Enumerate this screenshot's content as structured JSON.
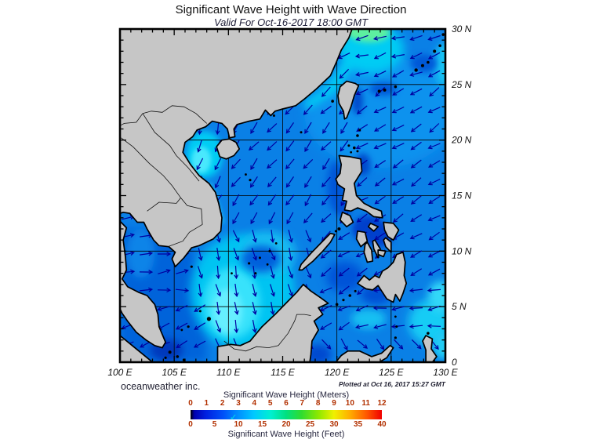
{
  "header": {
    "title": "Significant Wave Height with Wave Direction",
    "subtitle": "Valid For Oct-16-2017 18:00 GMT"
  },
  "footer": {
    "credit": "oceanweather inc.",
    "plotted_at": "Plotted at Oct 16, 2017 15:27 GMT"
  },
  "map": {
    "lon_min": 100,
    "lon_max": 130,
    "lat_min": 0,
    "lat_max": 30,
    "grid_step": 5,
    "tick_step": 1,
    "x_axis_labels": [
      "100 E",
      "105 E",
      "110 E",
      "115 E",
      "120 E",
      "125 E",
      "130 E"
    ],
    "y_axis_labels": [
      "30 N",
      "25 N",
      "20 N",
      "15 N",
      "10 N",
      "5 N",
      "0"
    ]
  },
  "colorbar": {
    "title_meters": "Significant Wave Height (Meters)",
    "title_feet": "Significant Wave Height (Feet)",
    "meters_ticks": [
      "0",
      "1",
      "2",
      "3",
      "4",
      "5",
      "6",
      "7",
      "8",
      "9",
      "10",
      "11",
      "12"
    ],
    "feet_ticks": [
      "0",
      "5",
      "10",
      "15",
      "20",
      "25",
      "30",
      "35",
      "40"
    ],
    "check_glyph": "✓",
    "gradient": [
      [
        "#000000",
        0
      ],
      [
        "#0000b0",
        2
      ],
      [
        "#0020e0",
        8
      ],
      [
        "#0050f8",
        17
      ],
      [
        "#0090ff",
        25
      ],
      [
        "#00c8ff",
        33
      ],
      [
        "#00f0d0",
        42
      ],
      [
        "#00e080",
        50
      ],
      [
        "#30dc30",
        58
      ],
      [
        "#90e800",
        67
      ],
      [
        "#f0f000",
        75
      ],
      [
        "#ffb000",
        83
      ],
      [
        "#ff5800",
        92
      ],
      [
        "#f00000",
        100
      ]
    ]
  },
  "colors": {
    "land": "#c6c6c6",
    "coast": "#000000",
    "ocean_base": "#0a80e6",
    "ocean_cyan": "#00ccf4",
    "ocean_green": "#5df0a0",
    "arrow": "#0000a0",
    "grid": "#000000",
    "tick_text": "#b23000",
    "axis_text": "#111111"
  },
  "arrows": {
    "spacing": 23,
    "length": 16,
    "regions": [
      {
        "name": "gulf-of-tonkin",
        "lon": [
          105.5,
          110.3
        ],
        "lat": [
          16.2,
          21.6
        ],
        "bearing": 195
      },
      {
        "name": "taiwan-strait",
        "lon": [
          117.0,
          121.8
        ],
        "lat": [
          22.0,
          26.8
        ],
        "bearing": 225
      },
      {
        "name": "east-china-sea",
        "lon": [
          100,
          130
        ],
        "lat": [
          24.8,
          30
        ],
        "bearing": 252
      },
      {
        "name": "gulf-of-thailand",
        "lon": [
          100,
          106
        ],
        "lat": [
          5,
          13.6
        ],
        "bearing": 85
      },
      {
        "name": "karimata",
        "lon": [
          100,
          108.6
        ],
        "lat": [
          0,
          5
        ],
        "bearing": 245
      },
      {
        "name": "sulu-sea",
        "lon": [
          119,
          123
        ],
        "lat": [
          4.5,
          9.8
        ],
        "bearing": 240
      },
      {
        "name": "celebes-west",
        "lon": [
          121.5,
          130
        ],
        "lat": [
          2.5,
          6.6
        ],
        "bearing": 262
      },
      {
        "name": "celebes-south",
        "lon": [
          117,
          130
        ],
        "lat": [
          0,
          2.5
        ],
        "bearing": 140
      },
      {
        "name": "south-scs",
        "lon": [
          106,
          117.5
        ],
        "lat": [
          0,
          11.5
        ],
        "bearing": 165
      },
      {
        "name": "philippine-sea",
        "lon": [
          121.8,
          130
        ],
        "lat": [
          6.6,
          24.8
        ],
        "bearing": 237
      },
      {
        "name": "central-scs",
        "lon": [
          105.5,
          121.8
        ],
        "lat": [
          11.5,
          24.8
        ],
        "bearing": 218
      }
    ],
    "default_bearing": 230
  }
}
